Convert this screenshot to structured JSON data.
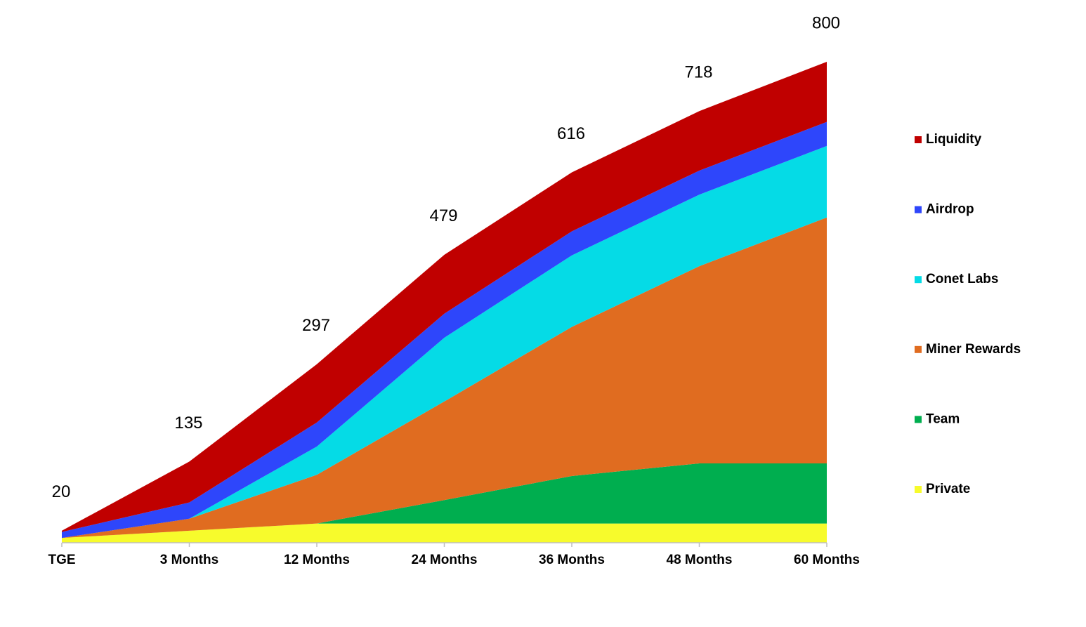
{
  "chart_data": {
    "type": "stacked_area",
    "categories": [
      "TGE",
      "3 Months",
      "12 Months",
      "24 Months",
      "36 Months",
      "48 Months",
      "60 Months"
    ],
    "series": [
      {
        "name": "Private",
        "color": "#f7fb2c",
        "values": [
          8,
          20,
          32,
          32,
          32,
          32,
          32
        ]
      },
      {
        "name": "Team",
        "color": "#00ae4f",
        "values": [
          0,
          0,
          0,
          39,
          79,
          100,
          100
        ]
      },
      {
        "name": "Miner Rewards",
        "color": "#e06c20",
        "values": [
          0,
          20,
          81,
          164,
          248,
          328,
          409
        ]
      },
      {
        "name": "Conet Labs",
        "color": "#05dbe6",
        "values": [
          0,
          0,
          47,
          106,
          119,
          119,
          119
        ]
      },
      {
        "name": "Airdrop",
        "color": "#2e46fb",
        "values": [
          10,
          27,
          40,
          40,
          40,
          40,
          40
        ]
      },
      {
        "name": "Liquidity",
        "color": "#c00000",
        "values": [
          2,
          68,
          97,
          98,
          98,
          99,
          100
        ]
      }
    ],
    "totals": [
      20,
      135,
      297,
      479,
      616,
      718,
      800
    ],
    "ylim": [
      0,
      800
    ]
  }
}
